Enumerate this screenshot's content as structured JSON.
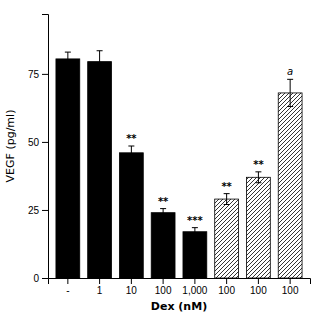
{
  "chart_data": {
    "type": "bar",
    "categories": [
      "-",
      "1",
      "10",
      "100",
      "1,000",
      "100",
      "100",
      "100"
    ],
    "values": [
      80.5,
      79.5,
      46.0,
      24.0,
      17.0,
      29.0,
      37.0,
      68.0
    ],
    "errors": [
      2.5,
      4.0,
      2.5,
      1.5,
      1.5,
      2.0,
      2.0,
      5.0
    ],
    "annotations": [
      null,
      null,
      "**",
      "**",
      "***",
      "**",
      "**",
      "a"
    ],
    "colors": [
      "#000000",
      "#000000",
      "#000000",
      "#000000",
      "#000000",
      "#ffffff",
      "#ffffff",
      "#ffffff"
    ],
    "xlabel": "Dex (nM)",
    "ylabel": "VEGF (pg/ml)",
    "ylim": [
      0,
      97
    ],
    "yticks": [
      0,
      25,
      50,
      75
    ]
  }
}
